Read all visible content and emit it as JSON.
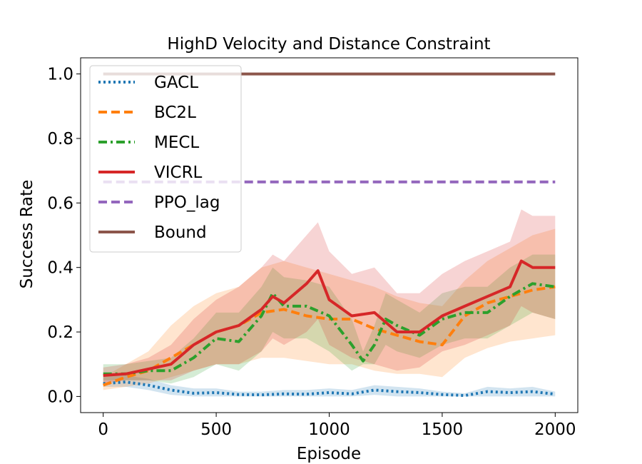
{
  "chart_data": {
    "type": "line",
    "title": "HighD Velocity and Distance Constraint",
    "xlabel": "Episode",
    "ylabel": "Success Rate",
    "xlim": [
      -100,
      2100
    ],
    "ylim": [
      -0.05,
      1.05
    ],
    "xticks": [
      0,
      500,
      1000,
      1500,
      2000
    ],
    "yticks": [
      0.0,
      0.2,
      0.4,
      0.6,
      0.8,
      1.0
    ],
    "xtick_labels": [
      "0",
      "500",
      "1000",
      "1500",
      "2000"
    ],
    "ytick_labels": [
      "0.0",
      "0.2",
      "0.4",
      "0.6",
      "0.8",
      "1.0"
    ],
    "legend_position": "top-left",
    "series": [
      {
        "name": "GACL",
        "color": "#1f77b4",
        "style": "dotted",
        "shaded": true,
        "x": [
          0,
          100,
          200,
          300,
          400,
          500,
          600,
          700,
          800,
          900,
          1000,
          1100,
          1200,
          1300,
          1400,
          1500,
          1600,
          1700,
          1800,
          1900,
          2000
        ],
        "y": [
          0.04,
          0.045,
          0.035,
          0.02,
          0.01,
          0.012,
          0.006,
          0.005,
          0.008,
          0.007,
          0.012,
          0.008,
          0.02,
          0.015,
          0.012,
          0.006,
          0.003,
          0.015,
          0.012,
          0.015,
          0.007
        ],
        "lower": [
          0.03,
          0.03,
          0.02,
          0.005,
          0.0,
          0.0,
          0.0,
          0.0,
          0.0,
          0.0,
          0.0,
          0.0,
          0.005,
          0.0,
          0.0,
          0.0,
          0.0,
          0.0,
          0.0,
          0.0,
          0.0
        ],
        "upper": [
          0.06,
          0.065,
          0.055,
          0.035,
          0.025,
          0.025,
          0.015,
          0.015,
          0.02,
          0.02,
          0.025,
          0.02,
          0.035,
          0.03,
          0.025,
          0.015,
          0.01,
          0.03,
          0.025,
          0.03,
          0.015
        ]
      },
      {
        "name": "BC2L",
        "color": "#ff7f0e",
        "style": "dashed",
        "shaded": true,
        "x": [
          0,
          100,
          200,
          300,
          400,
          500,
          600,
          700,
          800,
          900,
          1000,
          1100,
          1200,
          1300,
          1400,
          1500,
          1600,
          1700,
          1800,
          1900,
          2000
        ],
        "y": [
          0.035,
          0.06,
          0.08,
          0.12,
          0.16,
          0.2,
          0.22,
          0.26,
          0.27,
          0.25,
          0.24,
          0.24,
          0.21,
          0.19,
          0.17,
          0.16,
          0.25,
          0.29,
          0.31,
          0.33,
          0.34
        ],
        "lower": [
          0.02,
          0.03,
          0.04,
          0.06,
          0.08,
          0.1,
          0.1,
          0.12,
          0.12,
          0.11,
          0.1,
          0.1,
          0.08,
          0.07,
          0.07,
          0.06,
          0.12,
          0.15,
          0.17,
          0.18,
          0.19
        ],
        "upper": [
          0.06,
          0.1,
          0.14,
          0.22,
          0.28,
          0.32,
          0.34,
          0.4,
          0.42,
          0.4,
          0.38,
          0.36,
          0.34,
          0.31,
          0.29,
          0.28,
          0.36,
          0.42,
          0.46,
          0.5,
          0.52
        ]
      },
      {
        "name": "MECL",
        "color": "#2ca02c",
        "style": "dashdot",
        "shaded": true,
        "x": [
          0,
          100,
          200,
          300,
          400,
          500,
          600,
          700,
          750,
          800,
          900,
          1000,
          1100,
          1150,
          1200,
          1250,
          1300,
          1400,
          1500,
          1600,
          1700,
          1800,
          1900,
          2000
        ],
        "y": [
          0.07,
          0.07,
          0.08,
          0.08,
          0.12,
          0.18,
          0.17,
          0.25,
          0.32,
          0.28,
          0.28,
          0.25,
          0.16,
          0.11,
          0.16,
          0.24,
          0.22,
          0.19,
          0.24,
          0.26,
          0.26,
          0.31,
          0.35,
          0.34
        ],
        "lower": [
          0.05,
          0.05,
          0.05,
          0.04,
          0.06,
          0.1,
          0.08,
          0.14,
          0.2,
          0.18,
          0.18,
          0.14,
          0.08,
          0.1,
          0.1,
          0.16,
          0.14,
          0.12,
          0.16,
          0.18,
          0.18,
          0.22,
          0.26,
          0.24
        ],
        "upper": [
          0.1,
          0.1,
          0.11,
          0.12,
          0.18,
          0.26,
          0.26,
          0.34,
          0.4,
          0.37,
          0.36,
          0.34,
          0.24,
          0.14,
          0.22,
          0.32,
          0.3,
          0.26,
          0.32,
          0.34,
          0.34,
          0.4,
          0.44,
          0.44
        ]
      },
      {
        "name": "VICRL",
        "color": "#d62728",
        "style": "solid",
        "shaded": true,
        "x": [
          0,
          100,
          200,
          300,
          400,
          500,
          600,
          700,
          750,
          800,
          900,
          950,
          1000,
          1100,
          1200,
          1300,
          1400,
          1500,
          1600,
          1700,
          1800,
          1850,
          1900,
          2000
        ],
        "y": [
          0.065,
          0.07,
          0.085,
          0.1,
          0.16,
          0.2,
          0.22,
          0.27,
          0.31,
          0.29,
          0.35,
          0.39,
          0.3,
          0.25,
          0.26,
          0.2,
          0.2,
          0.25,
          0.28,
          0.31,
          0.34,
          0.42,
          0.4,
          0.4
        ],
        "lower": [
          0.04,
          0.05,
          0.05,
          0.05,
          0.08,
          0.1,
          0.1,
          0.14,
          0.18,
          0.16,
          0.2,
          0.24,
          0.16,
          0.12,
          0.1,
          0.08,
          0.09,
          0.14,
          0.16,
          0.19,
          0.22,
          0.28,
          0.26,
          0.24
        ],
        "upper": [
          0.09,
          0.1,
          0.12,
          0.16,
          0.24,
          0.3,
          0.34,
          0.4,
          0.44,
          0.42,
          0.5,
          0.54,
          0.45,
          0.38,
          0.4,
          0.32,
          0.32,
          0.38,
          0.42,
          0.45,
          0.48,
          0.58,
          0.56,
          0.56
        ]
      },
      {
        "name": "PPO_lag",
        "color": "#9467bd",
        "style": "dashed",
        "shaded": false,
        "x": [
          0,
          2000
        ],
        "y": [
          0.665,
          0.665
        ]
      },
      {
        "name": "Bound",
        "color": "#8c564b",
        "style": "solid",
        "shaded": false,
        "x": [
          0,
          2000
        ],
        "y": [
          1.0,
          1.0
        ]
      }
    ]
  }
}
